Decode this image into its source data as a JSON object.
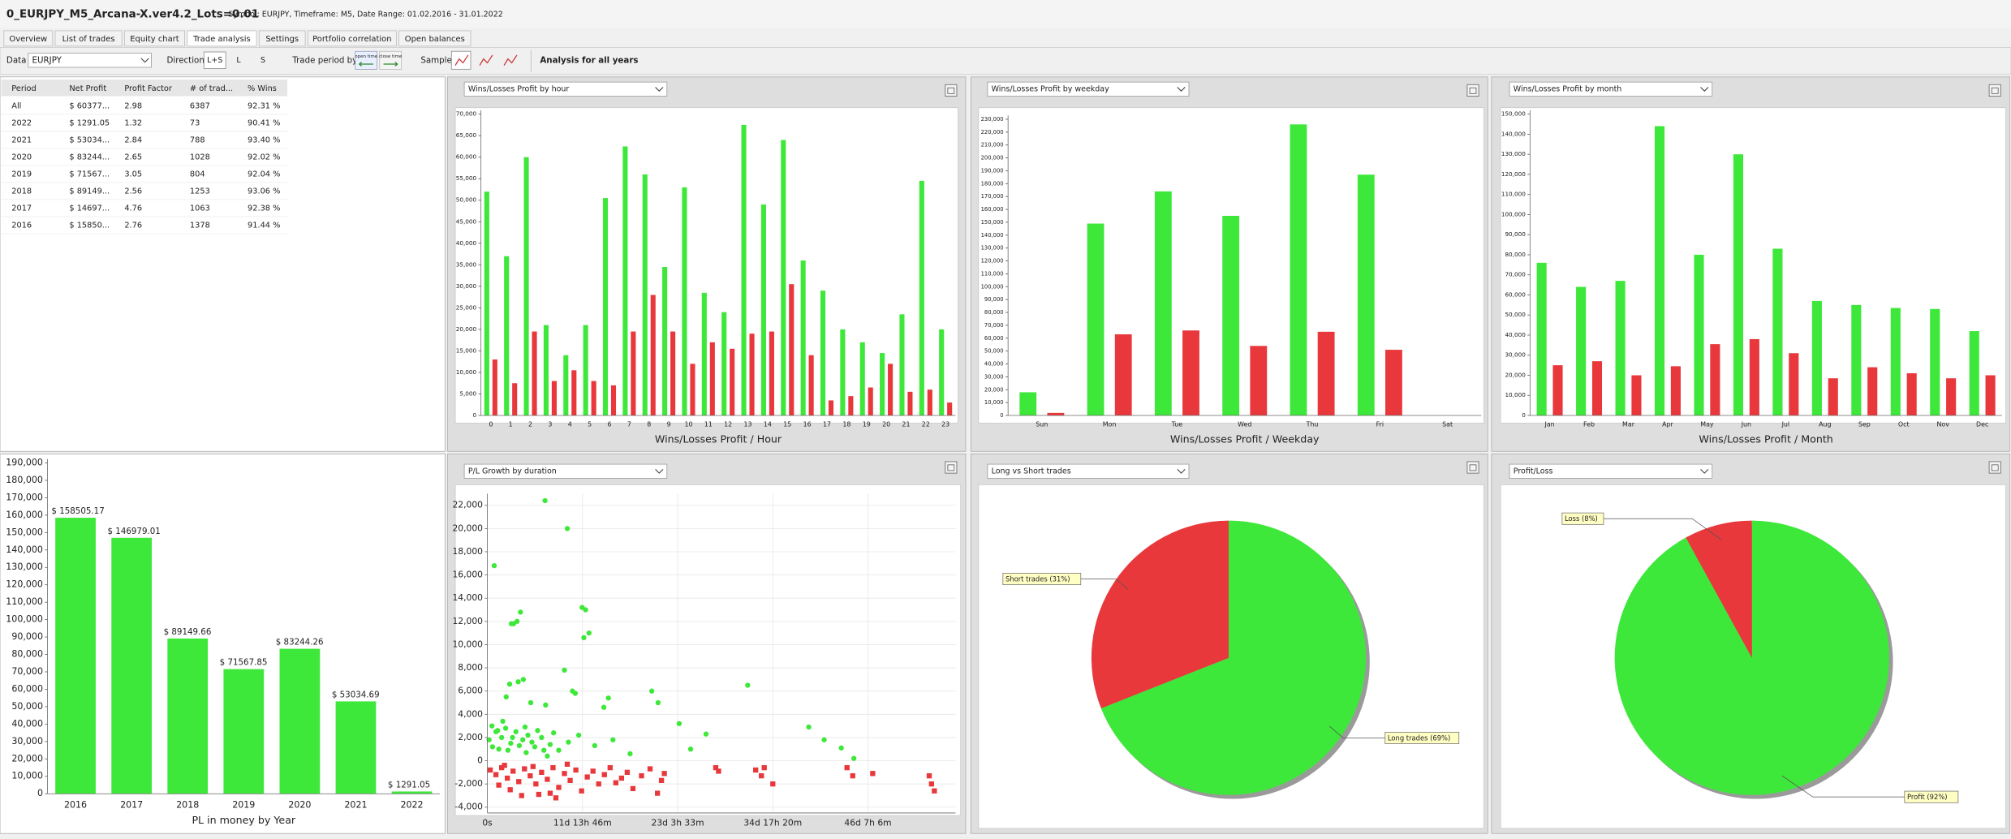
{
  "header": {
    "title": "0_EURJPY_M5_Arcana-X.ver4.2_Lots=0.01",
    "subtitle": "Symbol: EURJPY, Timeframe: M5, Date Range: 01.02.2016 - 31.01.2022"
  },
  "tabs": [
    "Overview",
    "List of trades",
    "Equity chart",
    "Trade analysis",
    "Settings",
    "Portfolio correlation",
    "Open balances"
  ],
  "toolbar": {
    "data_label": "Data",
    "symbol": "EURJPY",
    "direction_label": "Direction",
    "directions": [
      "L+S",
      "L",
      "S"
    ],
    "period_label": "Trade period by",
    "period_options": [
      "open time",
      "close time"
    ],
    "sample_label": "Sample",
    "analysis": "Analysis for all years"
  },
  "table": {
    "columns": [
      "Period",
      "Net Profit",
      "Profit Factor",
      "# of trad...",
      "% Wins"
    ],
    "rows": [
      [
        "All",
        "$ 60377...",
        "2.98",
        "6387",
        "92.31 %"
      ],
      [
        "2022",
        "$ 1291.05",
        "1.32",
        "73",
        "90.41 %"
      ],
      [
        "2021",
        "$ 53034...",
        "2.84",
        "788",
        "93.40 %"
      ],
      [
        "2020",
        "$ 83244...",
        "2.65",
        "1028",
        "92.02 %"
      ],
      [
        "2019",
        "$ 71567...",
        "3.05",
        "804",
        "92.04 %"
      ],
      [
        "2018",
        "$ 89149...",
        "2.56",
        "1253",
        "93.06 %"
      ],
      [
        "2017",
        "$ 14697...",
        "4.76",
        "1063",
        "92.38 %"
      ],
      [
        "2016",
        "$ 15850...",
        "2.76",
        "1378",
        "91.44 %"
      ]
    ]
  },
  "chart_data": [
    {
      "type": "bar",
      "title": "Wins/Losses Profit by hour",
      "x_label": "Wins/Losses Profit / Hour",
      "categories": [
        "0",
        "1",
        "2",
        "3",
        "4",
        "5",
        "6",
        "7",
        "8",
        "9",
        "10",
        "11",
        "12",
        "13",
        "14",
        "15",
        "16",
        "17",
        "18",
        "19",
        "20",
        "21",
        "22",
        "23"
      ],
      "series": [
        {
          "color": "#3ee83a",
          "values": [
            52000,
            37000,
            60000,
            21000,
            14000,
            21000,
            50500,
            62500,
            56000,
            34500,
            53000,
            28500,
            24000,
            67500,
            49000,
            64000,
            36000,
            29000,
            20000,
            17000,
            14500,
            23500,
            54500,
            20000
          ]
        },
        {
          "color": "#e8383c",
          "values": [
            13000,
            7500,
            19500,
            8000,
            10500,
            8000,
            7000,
            19500,
            28000,
            19500,
            12000,
            17000,
            15500,
            19000,
            19500,
            30500,
            14000,
            3500,
            4500,
            6500,
            12000,
            5500,
            6000,
            3000
          ]
        }
      ],
      "ylim": [
        0,
        70000
      ],
      "yticks": [
        0,
        {
          "value": 5000,
          "label": "5,000"
        },
        {
          "value": 10000,
          "label": "10,000"
        },
        {
          "value": 15000,
          "label": "15,000"
        },
        {
          "value": 20000,
          "label": "20,000"
        },
        {
          "value": 25000,
          "label": "25,000"
        },
        {
          "value": 30000,
          "label": "30,000"
        },
        {
          "value": 35000,
          "label": "35,000"
        },
        {
          "value": 40000,
          "label": "40,000"
        },
        {
          "value": 45000,
          "label": "45,000"
        },
        {
          "value": 50000,
          "label": "50,000"
        },
        {
          "value": 55000,
          "label": "55,000"
        },
        {
          "value": 60000,
          "label": "60,000"
        },
        {
          "value": 65000,
          "label": "65,000"
        },
        {
          "value": 70000,
          "label": "70,000"
        }
      ],
      "grid": false
    },
    {
      "type": "bar",
      "title": "Wins/Losses Profit by weekday",
      "x_label": "Wins/Losses Profit / Weekday",
      "categories": [
        "Sun",
        "Mon",
        "Tue",
        "Wed",
        "Thu",
        "Fri",
        "Sat"
      ],
      "series": [
        {
          "color": "#3ee83a",
          "values": [
            18000,
            149000,
            174000,
            155000,
            226000,
            187000,
            null
          ]
        },
        {
          "color": "#e8383c",
          "values": [
            2000,
            63000,
            66000,
            54000,
            65000,
            51000,
            null
          ]
        }
      ],
      "ylim": [
        0,
        230000
      ],
      "yticks": [
        0,
        {
          "value": 10000,
          "label": "10,000"
        },
        {
          "value": 20000,
          "label": "20,000"
        },
        {
          "value": 30000,
          "label": "30,000"
        },
        {
          "value": 40000,
          "label": "40,000"
        },
        {
          "value": 50000,
          "label": "50,000"
        },
        {
          "value": 60000,
          "label": "60,000"
        },
        {
          "value": 70000,
          "label": "70,000"
        },
        {
          "value": 80000,
          "label": "80,000"
        },
        {
          "value": 90000,
          "label": "90,000"
        },
        {
          "value": 100000,
          "label": "100,000"
        },
        {
          "value": 110000,
          "label": "110,000"
        },
        {
          "value": 120000,
          "label": "120,000"
        },
        {
          "value": 130000,
          "label": "130,000"
        },
        {
          "value": 140000,
          "label": "140,000"
        },
        {
          "value": 150000,
          "label": "150,000"
        },
        {
          "value": 160000,
          "label": "160,000"
        },
        {
          "value": 170000,
          "label": "170,000"
        },
        {
          "value": 180000,
          "label": "180,000"
        },
        {
          "value": 190000,
          "label": "190,000"
        },
        {
          "value": 200000,
          "label": "200,000"
        },
        {
          "value": 210000,
          "label": "210,000"
        },
        {
          "value": 220000,
          "label": "220,000"
        },
        {
          "value": 230000,
          "label": "230,000"
        }
      ],
      "grid": false
    },
    {
      "type": "bar",
      "title": "Wins/Losses Profit by month",
      "x_label": "Wins/Losses Profit / Month",
      "categories": [
        "Jan",
        "Feb",
        "Mar",
        "Apr",
        "May",
        "Jun",
        "Jul",
        "Aug",
        "Sep",
        "Oct",
        "Nov",
        "Dec"
      ],
      "series": [
        {
          "color": "#3ee83a",
          "values": [
            76000,
            64000,
            67000,
            144000,
            80000,
            130000,
            83000,
            57000,
            55000,
            53500,
            53000,
            42000
          ]
        },
        {
          "color": "#e8383c",
          "values": [
            25000,
            27000,
            20000,
            24500,
            35500,
            38000,
            31000,
            18500,
            24000,
            21000,
            18500,
            20000
          ]
        }
      ],
      "ylim": [
        0,
        150000
      ],
      "yticks": [
        0,
        {
          "value": 10000,
          "label": "10,000"
        },
        {
          "value": 20000,
          "label": "20,000"
        },
        {
          "value": 30000,
          "label": "30,000"
        },
        {
          "value": 40000,
          "label": "40,000"
        },
        {
          "value": 50000,
          "label": "50,000"
        },
        {
          "value": 60000,
          "label": "60,000"
        },
        {
          "value": 70000,
          "label": "70,000"
        },
        {
          "value": 80000,
          "label": "80,000"
        },
        {
          "value": 90000,
          "label": "90,000"
        },
        {
          "value": 100000,
          "label": "100,000"
        },
        {
          "value": 110000,
          "label": "110,000"
        },
        {
          "value": 120000,
          "label": "120,000"
        },
        {
          "value": 130000,
          "label": "130,000"
        },
        {
          "value": 140000,
          "label": "140,000"
        },
        {
          "value": 150000,
          "label": "150,000"
        }
      ],
      "grid": false
    },
    {
      "type": "bar",
      "x_label": "PL in money by Year",
      "categories": [
        "2016",
        "2017",
        "2018",
        "2019",
        "2020",
        "2021",
        "2022"
      ],
      "values": [
        158505.17,
        146979.01,
        89149.66,
        71567.85,
        83244.26,
        53034.69,
        1291.05
      ],
      "value_labels": [
        "$ 158505.17",
        "$ 146979.01",
        "$ 89149.66",
        "$ 71567.85",
        "$ 83244.26",
        "$ 53034.69",
        "$ 1291.05"
      ],
      "color": "#3ee83a",
      "ylim": [
        0,
        190000
      ],
      "yticks": [
        0,
        {
          "value": 10000,
          "label": "10,000"
        },
        {
          "value": 20000,
          "label": "20,000"
        },
        {
          "value": 30000,
          "label": "30,000"
        },
        {
          "value": 40000,
          "label": "40,000"
        },
        {
          "value": 50000,
          "label": "50,000"
        },
        {
          "value": 60000,
          "label": "60,000"
        },
        {
          "value": 70000,
          "label": "70,000"
        },
        {
          "value": 80000,
          "label": "80,000"
        },
        {
          "value": 90000,
          "label": "90,000"
        },
        {
          "value": 100000,
          "label": "100,000"
        },
        {
          "value": 110000,
          "label": "110,000"
        },
        {
          "value": 120000,
          "label": "120,000"
        },
        {
          "value": 130000,
          "label": "130,000"
        },
        {
          "value": 140000,
          "label": "140,000"
        },
        {
          "value": 150000,
          "label": "150,000"
        },
        {
          "value": 160000,
          "label": "160,000"
        },
        {
          "value": 170000,
          "label": "170,000"
        },
        {
          "value": 180000,
          "label": "180,000"
        },
        {
          "value": 190000,
          "label": "190,000"
        }
      ],
      "grid": false
    },
    {
      "type": "scatter",
      "title": "P/L Growth by duration",
      "series": [
        {
          "color": "#3ee83a",
          "marker": "circle",
          "x": [
            1200,
            10100,
            14000,
            4600,
            4200,
            5200,
            5800,
            16600,
            17200,
            17800,
            16900,
            13500,
            6300,
            5400,
            3900,
            3300,
            7600,
            10200,
            14900,
            15400,
            20400,
            21200,
            28800,
            29900,
            33600,
            35600,
            38300,
            45600,
            56300,
            59000,
            62000,
            64200,
            800,
            1500,
            2500,
            3200,
            4100,
            5000,
            6200,
            7100,
            8300,
            9500,
            11000,
            12500,
            14200,
            16000,
            18800,
            22000,
            25000,
            2000,
            6800,
            10500,
            300,
            900,
            1800,
            2700,
            3600,
            4400,
            5600,
            6600,
            7800,
            8800,
            9900,
            11600
          ],
          "values": [
            16800,
            22400,
            20000,
            11800,
            11800,
            12000,
            12800,
            13200,
            13000,
            11000,
            10600,
            7800,
            7000,
            6800,
            6600,
            5500,
            5000,
            4800,
            6000,
            5800,
            4600,
            5400,
            6000,
            5000,
            3200,
            1000,
            2300,
            6500,
            2900,
            1800,
            1100,
            200,
            3000,
            2500,
            2000,
            2800,
            1500,
            2500,
            1800,
            2200,
            1200,
            2000,
            1400,
            900,
            1600,
            2200,
            1300,
            1800,
            600,
            1000,
            700,
            400,
            1800,
            1200,
            2600,
            3400,
            900,
            2000,
            1300,
            2900,
            1600,
            2600,
            900,
            2400
          ]
        },
        {
          "color": "#e8383c",
          "marker": "square",
          "x": [
            500,
            1500,
            2500,
            3500,
            4500,
            5500,
            6500,
            7500,
            8500,
            9500,
            10500,
            11500,
            12500,
            13500,
            14500,
            15500,
            16500,
            17500,
            18500,
            19500,
            20500,
            21500,
            22500,
            23500,
            24500,
            25500,
            27000,
            28500,
            29800,
            30500,
            31000,
            2000,
            4000,
            6000,
            9000,
            12000,
            11000,
            40000,
            40500,
            47000,
            48000,
            48500,
            50000,
            63000,
            64000,
            67500,
            77400,
            77800,
            78300,
            3000,
            8000,
            14000
          ],
          "values": [
            -800,
            -1200,
            -600,
            -1500,
            -900,
            -1800,
            -700,
            -1300,
            -2000,
            -1000,
            -1600,
            -600,
            -2300,
            -1100,
            -1700,
            -800,
            -2600,
            -1400,
            -900,
            -2000,
            -1200,
            -600,
            -1900,
            -1500,
            -1000,
            -2400,
            -1300,
            -700,
            -2800,
            -1700,
            -1100,
            -2100,
            -2500,
            -3000,
            -2900,
            -3200,
            -2800,
            -600,
            -900,
            -800,
            -1300,
            -600,
            -2000,
            -600,
            -1300,
            -1100,
            -1300,
            -2000,
            -2600,
            -400,
            -500,
            -300
          ]
        }
      ],
      "xlim": [
        0,
        82000
      ],
      "xticks": [
        {
          "value": 0,
          "label": "0s"
        },
        {
          "value": 16666,
          "label": "11d 13h 46m"
        },
        {
          "value": 33333,
          "label": "23d 3h 33m"
        },
        {
          "value": 50000,
          "label": "34d 17h 20m"
        },
        {
          "value": 66666,
          "label": "46d 7h 6m"
        }
      ],
      "ylim": [
        -4500,
        23000
      ],
      "yticks": [
        {
          "value": -4000,
          "label": "-4,000"
        },
        {
          "value": -2000,
          "label": "-2,000"
        },
        0,
        {
          "value": 2000,
          "label": "2,000"
        },
        {
          "value": 4000,
          "label": "4,000"
        },
        {
          "value": 6000,
          "label": "6,000"
        },
        {
          "value": 8000,
          "label": "8,000"
        },
        {
          "value": 10000,
          "label": "10,000"
        },
        {
          "value": 12000,
          "label": "12,000"
        },
        {
          "value": 14000,
          "label": "14,000"
        },
        {
          "value": 16000,
          "label": "16,000"
        },
        {
          "value": 18000,
          "label": "18,000"
        },
        {
          "value": 20000,
          "label": "20,000"
        },
        {
          "value": 22000,
          "label": "22,000"
        }
      ],
      "grid": true
    },
    {
      "type": "pie",
      "title": "Long vs Short trades",
      "values": [
        69,
        31
      ],
      "value_labels": [
        "Long trades (69%)",
        "Short trades (31%)"
      ],
      "colors": [
        "#3ee83a",
        "#e8383c"
      ]
    },
    {
      "type": "pie",
      "title": "Profit/Loss",
      "values": [
        92,
        8
      ],
      "value_labels": [
        "Profit (92%)",
        "Loss (8%)"
      ],
      "colors": [
        "#3ee83a",
        "#e8383c"
      ]
    }
  ]
}
